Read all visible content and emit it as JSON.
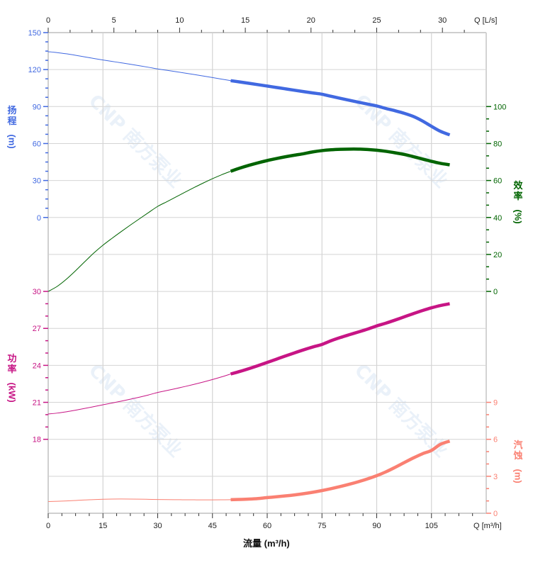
{
  "chart_data": {
    "type": "line",
    "x": {
      "label": "流量 (m³/h)",
      "unit_label": "Q [m³/h]",
      "range": [
        0,
        120
      ],
      "ticks": [
        0,
        15,
        30,
        45,
        60,
        75,
        90,
        105
      ]
    },
    "x_top": {
      "unit_label": "Q [L/s]",
      "ticks": [
        0,
        5,
        10,
        15,
        20,
        25,
        30
      ]
    },
    "grid": true,
    "operating_range": [
      50,
      110
    ],
    "series": [
      {
        "key": "head",
        "axis_label_cn": "扬程",
        "axis_unit": "(m)",
        "color": "#4169E1",
        "axis_side": "left",
        "axis_range": [
          0,
          150
        ],
        "ticks": [
          0,
          30,
          60,
          90,
          120,
          150
        ],
        "points": [
          [
            0,
            134.5
          ],
          [
            15,
            127.8
          ],
          [
            30,
            120.5
          ],
          [
            50,
            111
          ],
          [
            75,
            100
          ],
          [
            90,
            90.5
          ],
          [
            100,
            82
          ],
          [
            110,
            67
          ]
        ]
      },
      {
        "key": "efficiency",
        "axis_label_cn": "效率",
        "axis_unit": "(%)",
        "color": "#006400",
        "axis_side": "right",
        "axis_range": [
          0,
          100
        ],
        "ticks": [
          0,
          20,
          40,
          60,
          80,
          100
        ],
        "points": [
          [
            0,
            0
          ],
          [
            15,
            25
          ],
          [
            30,
            46
          ],
          [
            50,
            65
          ],
          [
            70,
            74.5
          ],
          [
            83,
            77
          ],
          [
            95,
            75
          ],
          [
            110,
            68.5
          ]
        ]
      },
      {
        "key": "power",
        "axis_label_cn": "功率",
        "axis_unit": "(kW)",
        "color": "#C71585",
        "axis_side": "left",
        "axis_range": [
          18,
          30
        ],
        "ticks": [
          18,
          21,
          24,
          27,
          30
        ],
        "points": [
          [
            0,
            20.05
          ],
          [
            15,
            20.8
          ],
          [
            30,
            21.8
          ],
          [
            50,
            23.3
          ],
          [
            75,
            25.7
          ],
          [
            90,
            27.2
          ],
          [
            110,
            29
          ]
        ]
      },
      {
        "key": "npsh",
        "axis_label_cn": "汽蚀",
        "axis_unit": "(m)",
        "color": "#FA8072",
        "axis_side": "right",
        "axis_range": [
          0,
          9
        ],
        "ticks": [
          0,
          3,
          6,
          9
        ],
        "points": [
          [
            0,
            0.95
          ],
          [
            17,
            1.15
          ],
          [
            35,
            1.1
          ],
          [
            50,
            1.1
          ],
          [
            60,
            1.27
          ],
          [
            75,
            1.84
          ],
          [
            90,
            3.05
          ],
          [
            105,
            5.1
          ],
          [
            110,
            5.85
          ]
        ]
      }
    ],
    "watermark": "CNP 南方泵业"
  }
}
